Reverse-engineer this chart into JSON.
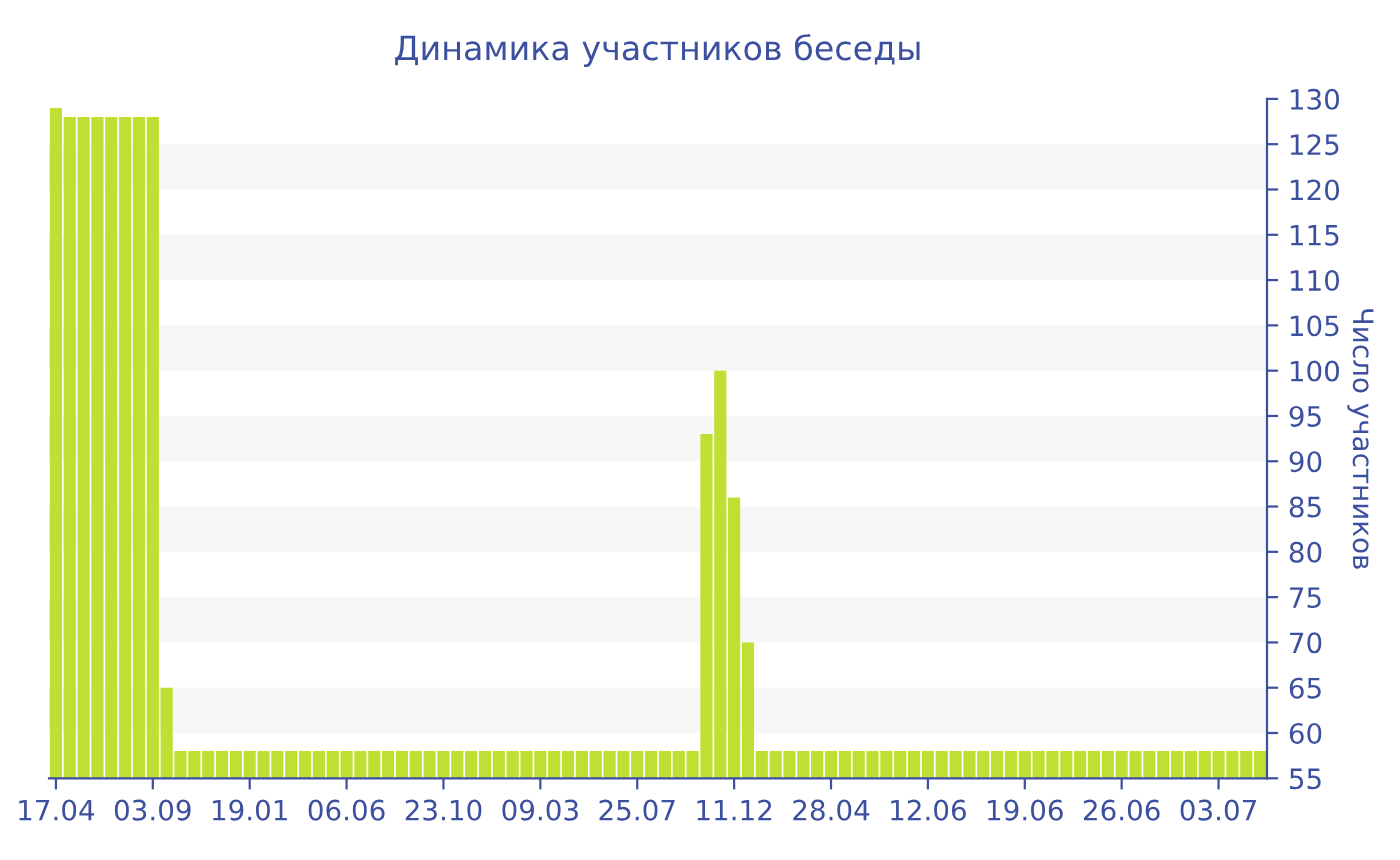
{
  "chart_data": {
    "type": "bar",
    "title": "Динамика участников беседы",
    "ylabel": "Число участников",
    "categories": [
      "17.04",
      null,
      null,
      null,
      null,
      null,
      null,
      "03.09",
      null,
      null,
      null,
      null,
      null,
      null,
      "19.01",
      null,
      null,
      null,
      null,
      null,
      null,
      "06.06",
      null,
      null,
      null,
      null,
      null,
      null,
      "23.10",
      null,
      null,
      null,
      null,
      null,
      null,
      "09.03",
      null,
      null,
      null,
      null,
      null,
      null,
      "25.07",
      null,
      null,
      null,
      null,
      null,
      null,
      "11.12",
      null,
      null,
      null,
      null,
      null,
      null,
      "28.04",
      null,
      null,
      null,
      null,
      null,
      null,
      "12.06",
      null,
      null,
      null,
      null,
      null,
      null,
      "19.06",
      null,
      null,
      null,
      null,
      null,
      null,
      "26.06",
      null,
      null,
      null,
      null,
      null,
      null,
      "03.07",
      null,
      null,
      null
    ],
    "values": [
      129,
      128,
      128,
      128,
      128,
      128,
      128,
      128,
      65,
      58,
      58,
      58,
      58,
      58,
      58,
      58,
      58,
      58,
      58,
      58,
      58,
      58,
      58,
      58,
      58,
      58,
      58,
      58,
      58,
      58,
      58,
      58,
      58,
      58,
      58,
      58,
      58,
      58,
      58,
      58,
      58,
      58,
      58,
      58,
      58,
      58,
      58,
      93,
      100,
      86,
      70,
      58,
      58,
      58,
      58,
      58,
      58,
      58,
      58,
      58,
      58,
      58,
      58,
      58,
      58,
      58,
      58,
      58,
      58,
      58,
      58,
      58,
      58,
      58,
      58,
      58,
      58,
      58,
      58,
      58,
      58,
      58,
      58,
      58,
      58,
      58,
      58,
      58
    ],
    "color": "#bfe032",
    "ylim": [
      55,
      130
    ],
    "yticks": [
      55,
      60,
      65,
      70,
      75,
      80,
      85,
      90,
      95,
      100,
      105,
      110,
      115,
      120,
      125,
      130
    ],
    "bands": [
      {
        "axis": "y",
        "from": 60,
        "to": 65,
        "color": "#f7f7f7"
      },
      {
        "axis": "y",
        "from": 70,
        "to": 75,
        "color": "#f7f7f7"
      },
      {
        "axis": "y",
        "from": 80,
        "to": 85,
        "color": "#f7f7f7"
      },
      {
        "axis": "y",
        "from": 90,
        "to": 95,
        "color": "#f7f7f7"
      },
      {
        "axis": "y",
        "from": 100,
        "to": 105,
        "color": "#f7f7f7"
      },
      {
        "axis": "y",
        "from": 110,
        "to": 115,
        "color": "#f7f7f7"
      },
      {
        "axis": "y",
        "from": 120,
        "to": 125,
        "color": "#f7f7f7"
      }
    ]
  }
}
